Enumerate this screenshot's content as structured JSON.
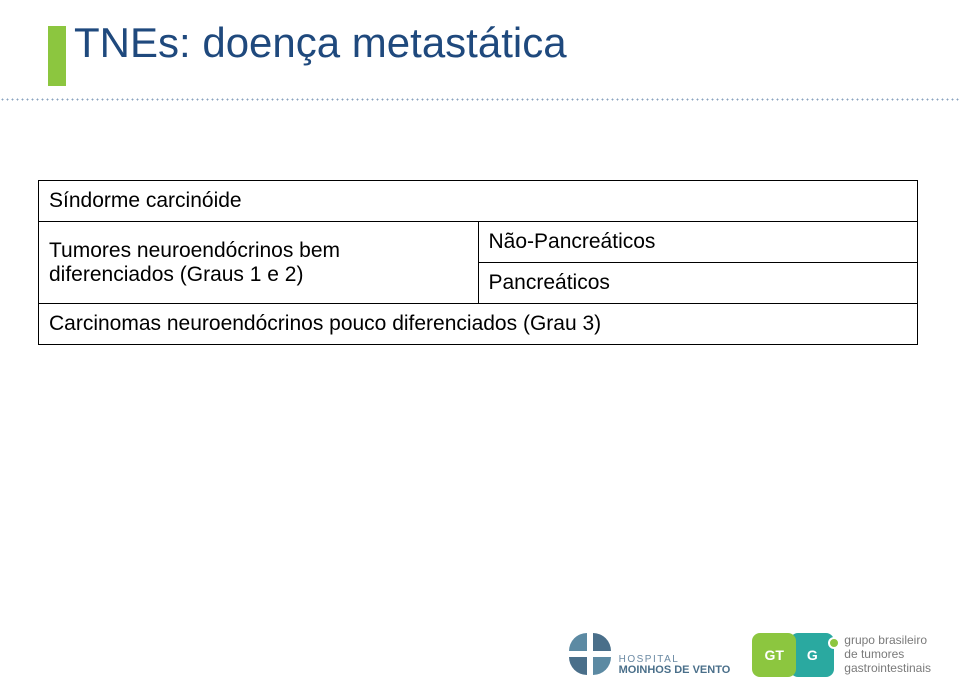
{
  "slide": {
    "title": "TNEs: doença metastática",
    "title_color": "#1f497d",
    "title_fontsize": 42,
    "accent_color": "#8cc63f",
    "divider_color": "#8aa3bf",
    "background_color": "#ffffff"
  },
  "table": {
    "type": "table",
    "border_color": "#000000",
    "font_size": 21,
    "rows": [
      {
        "full": "Síndorme carcinóide"
      },
      {
        "left": "Tumores neuroendócrinos bem diferenciados (Graus 1 e 2)",
        "right_top": "Não-Pancreáticos",
        "right_bottom": "Pancreáticos"
      },
      {
        "full": "Carcinomas neuroendócrinos pouco diferenciados (Grau 3)"
      }
    ]
  },
  "footer": {
    "hospital": {
      "line1": "HOSPITAL",
      "line2": "MOINHOS DE VENTO"
    },
    "gtg": {
      "mark_letters": [
        "GT",
        "G"
      ],
      "text_lines": [
        "grupo brasileiro",
        "de tumores",
        "gastrointestinais"
      ]
    }
  },
  "colors": {
    "accent_green": "#8cc63f",
    "teal": "#2aa9a0",
    "text_gray": "#7a7a7a",
    "hospital_blue": "#4a6f8a"
  }
}
